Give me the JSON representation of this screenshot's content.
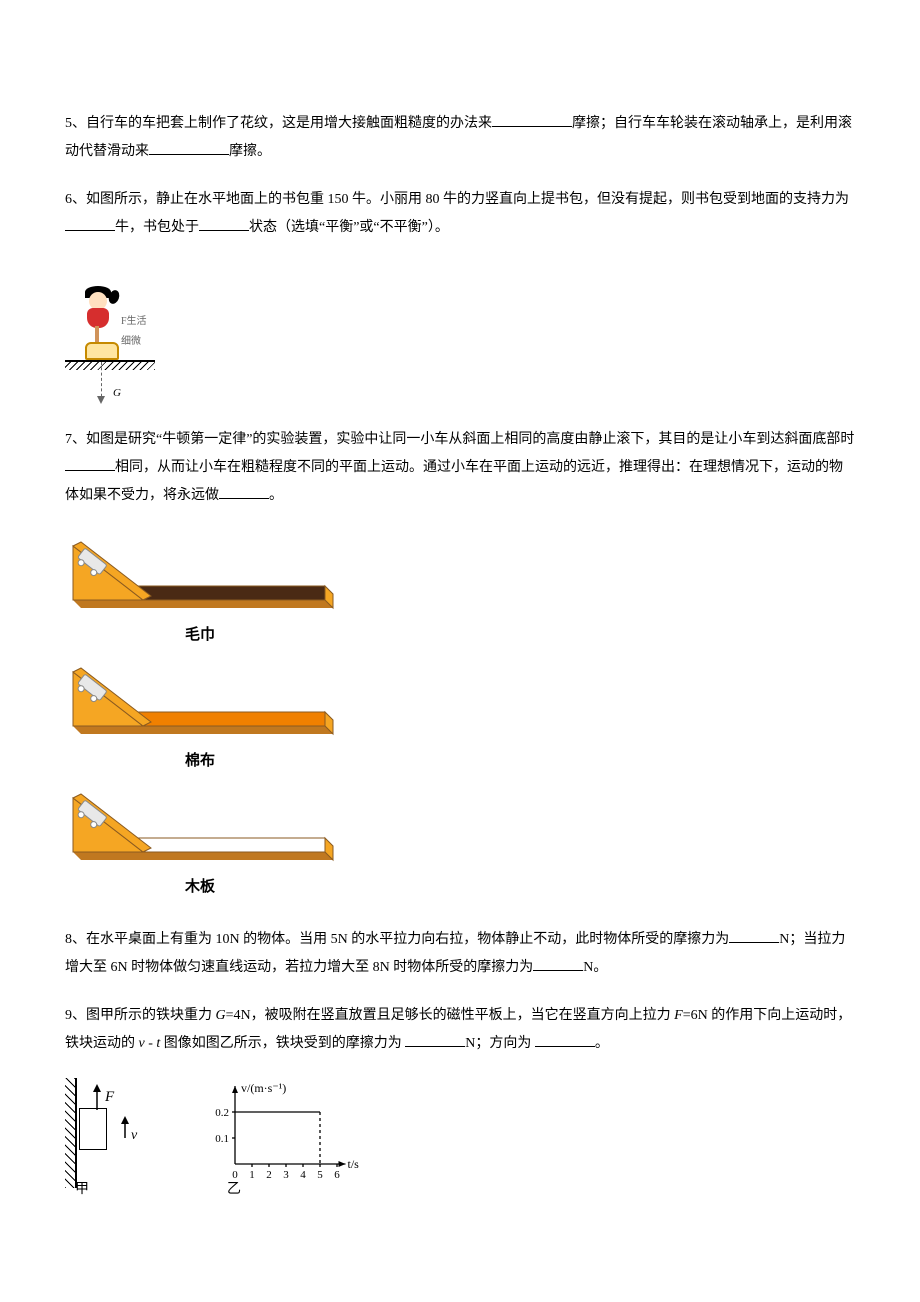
{
  "q5": {
    "prefix": "5、自行车的车把套上制作了花纹，这是用增大接触面粗糙度的办法来",
    "mid": "摩擦；自行车车轮装在滚动轴承上，是利用滚动代替滑动来",
    "suffix": "摩擦。"
  },
  "q6": {
    "line1a": "6、如图所示，静止在水平地面上的书包重 150 牛。小丽用 80 牛的力竖直向上提书包，但没有提起，则书包受到地面的支持力为",
    "line1b": "牛，书包处于",
    "line1c": "状态（选填“平衡”或“不平衡”）。",
    "labelG": "G",
    "labelF": "F生活细微"
  },
  "q7": {
    "line1a": "7、如图是研究“牛顿第一定律”的实验装置，实验中让同一小车从斜面上相同的高度由静止滚下，其目的是让小车到达斜面底部时",
    "line1b": "相同，从而让小车在粗糙程度不同的平面上运动。通过小车在平面上运动的远近，推理得出：在理想情况下，运动的物体如果不受力，将永远做",
    "line1c": "。",
    "surfaces": [
      {
        "label": "毛巾",
        "surface_color": "#4a2a14"
      },
      {
        "label": "棉布",
        "surface_color": "#f08000"
      },
      {
        "label": "木板",
        "surface_color": "#ffffff"
      }
    ],
    "ramp": {
      "ramp_fill": "#f5a623",
      "ramp_stroke": "#8a5a20",
      "car_body": "#e8e8e8",
      "car_stroke": "#888888",
      "shadow": "#c07820"
    }
  },
  "q8": {
    "a": "8、在水平桌面上有重为 10N 的物体。当用 5N 的水平拉力向右拉，物体静止不动，此时物体所受的摩擦力为",
    "b": "N；当拉力增大至 6N 时物体做匀速直线运动，若拉力增大至 8N 时物体所受的摩擦力为",
    "c": "N。"
  },
  "q9": {
    "a": "9、图甲所示的铁块重力 ",
    "g_eq": "G",
    "a2": "=4N，被吸附在竖直放置且足够长的磁性平板上，当它在竖直方向上拉力 ",
    "f_eq": "F",
    "a3": "=6N 的作用下向上运动时，铁块运动的 ",
    "vt": "v - t",
    "a4": " 图像如图乙所示，铁块受到的摩擦力为 ",
    "a5": "N；方向为 ",
    "a6": "。",
    "caption_left": "甲",
    "caption_right": "乙",
    "labels": {
      "F": "F",
      "v": "v"
    },
    "chart": {
      "y_label": "v/(m·s⁻¹)",
      "x_label": "t/s",
      "y_ticks": [
        "0.1",
        "0.2"
      ],
      "x_ticks": [
        "0",
        "1",
        "2",
        "3",
        "4",
        "5",
        "6"
      ],
      "line_y_value": 0.2,
      "dash_at_x": 5,
      "axis_color": "#000000",
      "line_color": "#000000",
      "font_size": 11
    }
  }
}
